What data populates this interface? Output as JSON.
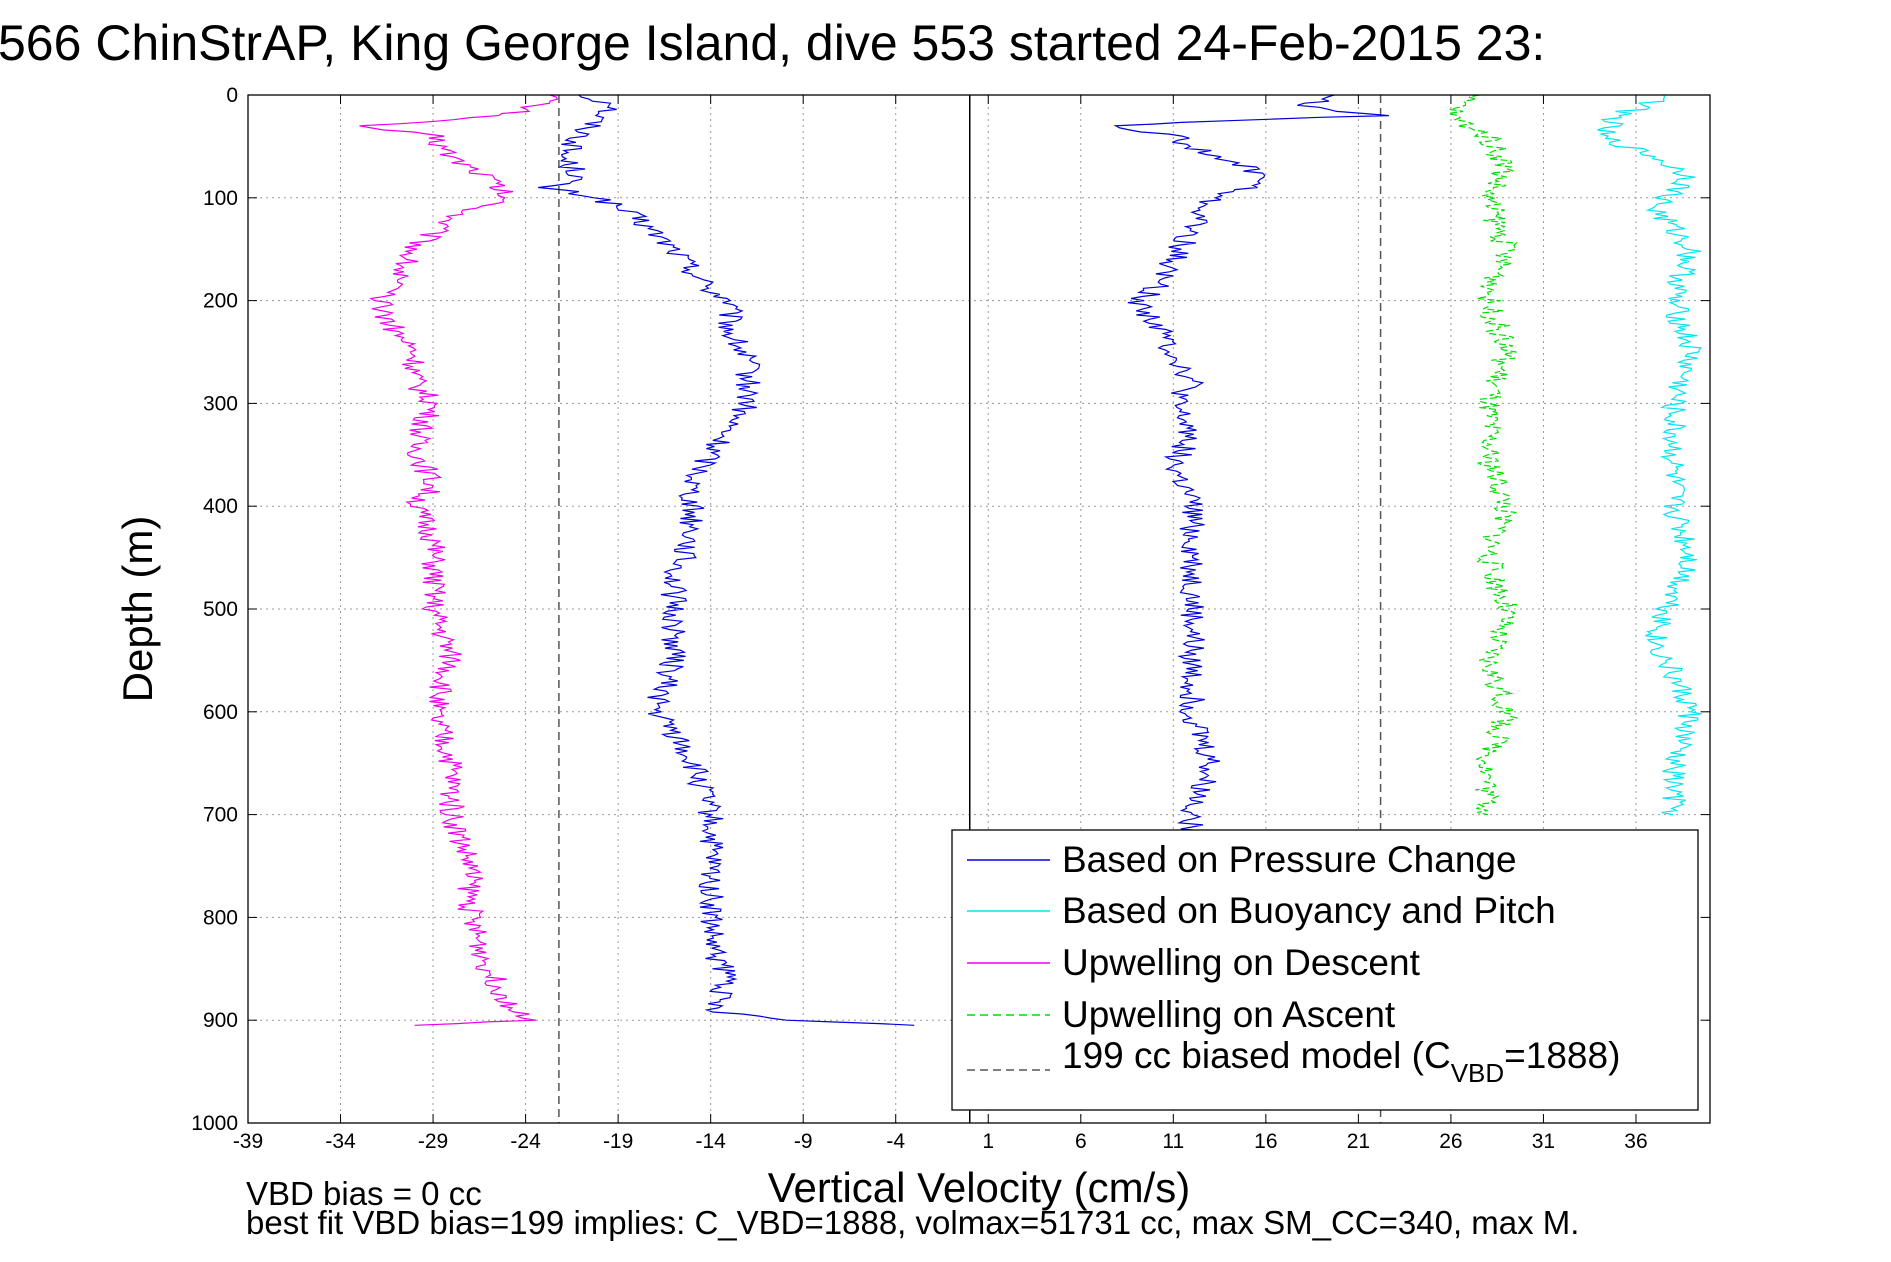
{
  "title": "566 ChinStrAP, King George Island, dive 553 started 24-Feb-2015 23:",
  "footer": {
    "line1": "VBD bias = 0 cc",
    "line2": "best fit VBD bias=199 implies: C_VBD=1888, volmax=51731 cc, max SM_CC=340, max M."
  },
  "colors": {
    "pressure": "#0000dd",
    "buoyancy": "#00e5ee",
    "descent": "#ee00ee",
    "ascent": "#00dd00",
    "model": "#555555",
    "grid": "#9a9a9a"
  },
  "legend": {
    "items": [
      {
        "label": "Based on Pressure Change",
        "color": "#0000dd",
        "style": "solid"
      },
      {
        "label": "Based on Buoyancy and Pitch",
        "color": "#00e5ee",
        "style": "solid"
      },
      {
        "label": "Upwelling on Descent",
        "color": "#ee00ee",
        "style": "solid"
      },
      {
        "label": "Upwelling on Ascent",
        "color": "#00dd00",
        "style": "dashed"
      }
    ],
    "model_prefix": "199 cc biased model (C",
    "model_sub": "VBD",
    "model_suffix": "=1888)"
  },
  "chart_data": {
    "type": "line",
    "title": "566 ChinStrAP, King George Island, dive 553 started 24-Feb-2015 23:",
    "xlabel": "Vertical Velocity (cm/s)",
    "ylabel": "Depth (m)",
    "xlim": [
      -39,
      40
    ],
    "ylim": [
      0,
      1000
    ],
    "y_reversed": true,
    "grid": true,
    "legend_position": "bottom-right",
    "xticks": [
      -39,
      -34,
      -29,
      -24,
      -19,
      -14,
      -9,
      -4,
      1,
      6,
      11,
      16,
      21,
      26,
      31,
      36
    ],
    "yticks": [
      0,
      100,
      200,
      300,
      400,
      500,
      600,
      700,
      800,
      900,
      1000
    ],
    "reference_lines": [
      {
        "name": "199 cc biased model (C_VBD=1888)",
        "x": -22.2,
        "style": "dashed",
        "color": "#555555"
      },
      {
        "name": "199 cc biased model (C_VBD=1888)",
        "x": 22.2,
        "style": "dashed",
        "color": "#555555"
      },
      {
        "name": "zero",
        "x": 0,
        "style": "solid",
        "color": "#000000"
      }
    ],
    "series": [
      {
        "name": "Based on Pressure Change",
        "color": "#0000dd",
        "depth": [
          0,
          10,
          20,
          40,
          60,
          80,
          90,
          100,
          120,
          150,
          170,
          190,
          200,
          230,
          260,
          280,
          300,
          320,
          350,
          380,
          400,
          430,
          470,
          500,
          550,
          600,
          620,
          650,
          700,
          750,
          800,
          830,
          860,
          890,
          900,
          905
        ],
        "velocity": [
          -21,
          -19,
          -20,
          -21,
          -22,
          -21,
          -23,
          -20,
          -18,
          -16,
          -15,
          -14,
          -13,
          -13,
          -12,
          -12,
          -12,
          -13,
          -14,
          -15,
          -15,
          -15,
          -16,
          -16,
          -16,
          -17,
          -16,
          -15,
          -14,
          -14,
          -14,
          -14,
          -13,
          -14,
          -10,
          -3
        ]
      },
      {
        "name": "Based on Pressure Change",
        "color": "#0000dd",
        "depth": [
          0,
          10,
          20,
          25,
          30,
          40,
          50,
          60,
          70,
          80,
          90,
          100,
          130,
          160,
          190,
          200,
          220,
          250,
          280,
          300,
          330,
          360,
          400,
          440,
          480,
          520,
          560,
          600,
          650,
          700,
          720
        ],
        "velocity": [
          20,
          18,
          22,
          14,
          8,
          11,
          12,
          13,
          15,
          16,
          15,
          13,
          12,
          11,
          10,
          9,
          10,
          11,
          12,
          11,
          12,
          11,
          12,
          12,
          12,
          12,
          12,
          12,
          13,
          12,
          12
        ]
      },
      {
        "name": "Based on Buoyancy and Pitch",
        "color": "#00e5ee",
        "depth": [
          0,
          20,
          40,
          60,
          80,
          110,
          150,
          200,
          250,
          300,
          350,
          400,
          450,
          530,
          600,
          650,
          700
        ],
        "velocity": [
          38,
          35,
          34,
          37,
          39,
          37,
          39,
          38,
          39,
          38,
          38,
          38,
          39,
          37,
          39,
          38,
          38
        ]
      },
      {
        "name": "Upwelling on Descent",
        "color": "#ee00ee",
        "depth": [
          0,
          20,
          30,
          40,
          60,
          80,
          100,
          120,
          150,
          180,
          200,
          230,
          250,
          280,
          300,
          340,
          380,
          400,
          430,
          470,
          500,
          550,
          600,
          650,
          700,
          750,
          800,
          850,
          880,
          900,
          905
        ],
        "velocity": [
          -22,
          -25,
          -33,
          -29,
          -28,
          -26,
          -25,
          -28,
          -30,
          -31,
          -32,
          -31,
          -30,
          -30,
          -29,
          -30,
          -29,
          -30,
          -29,
          -29,
          -29,
          -28,
          -29,
          -28,
          -28,
          -27,
          -27,
          -26,
          -25,
          -24,
          -30
        ]
      },
      {
        "name": "Upwelling on Ascent",
        "color": "#00dd00",
        "depth": [
          0,
          20,
          40,
          70,
          100,
          150,
          200,
          250,
          300,
          350,
          400,
          450,
          500,
          550,
          600,
          650,
          700
        ],
        "velocity": [
          27,
          26,
          28,
          29,
          28,
          29,
          28,
          29,
          28,
          28,
          29,
          28,
          29,
          28,
          29,
          28,
          28
        ]
      }
    ]
  }
}
